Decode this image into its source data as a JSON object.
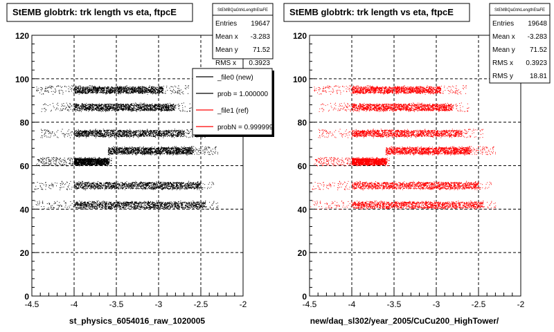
{
  "footer_text": "",
  "chart_data": [
    {
      "type": "scatter",
      "title": "StEMB globtrk: trk length vs eta, ftpcE",
      "xlabel": "st_physics_6054016_raw_1020005",
      "ylabel": "",
      "xlim": [
        -4.5,
        -2
      ],
      "ylim": [
        0,
        120
      ],
      "x_ticks": [
        "-4.5",
        "-4",
        "-3.5",
        "-3",
        "-2.5",
        "-2"
      ],
      "y_ticks": [
        "0",
        "20",
        "40",
        "60",
        "80",
        "100",
        "120"
      ],
      "grid": true,
      "marker_color": "#000000",
      "stats": {
        "name": "StEMBQaGtrkLengthEtaFE",
        "rows": [
          {
            "label": "Entries",
            "value": "19647"
          },
          {
            "label": "Mean x",
            "value": "-3.283"
          },
          {
            "label": "Mean y",
            "value": "71.52"
          },
          {
            "label": "RMS x",
            "value": "0.3923"
          }
        ]
      },
      "legend": {
        "placement": "top-right",
        "entries": [
          {
            "label": "_file0 (new)",
            "color": "#000000"
          },
          {
            "label": "prob = 1.000000",
            "color": "#000000"
          },
          {
            "label": "_file1 (ref)",
            "color": "#ff0000"
          },
          {
            "label": "probN = 0.999999",
            "color": "#ff0000"
          }
        ]
      },
      "bands": [
        {
          "y": [
            93,
            97
          ],
          "x": [
            -4.45,
            -2.65
          ],
          "dense": [
            -4.0,
            -2.95
          ]
        },
        {
          "y": [
            85,
            89
          ],
          "x": [
            -4.4,
            -2.6
          ],
          "dense": [
            -4.0,
            -2.8
          ]
        },
        {
          "y": [
            73,
            77
          ],
          "x": [
            -4.4,
            -2.45
          ],
          "dense": [
            -4.0,
            -2.7
          ]
        },
        {
          "y": [
            65,
            69
          ],
          "x": [
            -3.6,
            -2.3
          ],
          "dense": [
            -3.6,
            -2.6
          ]
        },
        {
          "y": [
            60,
            64
          ],
          "x": [
            -4.45,
            -3.55
          ],
          "dense": [
            -4.0,
            -3.6
          ]
        },
        {
          "y": [
            49,
            53
          ],
          "x": [
            -4.5,
            -2.35
          ],
          "dense": [
            -4.0,
            -2.5
          ]
        },
        {
          "y": [
            40,
            44
          ],
          "x": [
            -4.5,
            -2.3
          ],
          "dense": [
            -4.0,
            -2.45
          ]
        }
      ]
    },
    {
      "type": "scatter",
      "title": "StEMB globtrk: trk length vs eta, ftpcE",
      "xlabel": "new/daq_sl302/year_2005/CuCu200_HighTower/",
      "ylabel": "",
      "xlim": [
        -4.5,
        -2
      ],
      "ylim": [
        0,
        120
      ],
      "x_ticks": [
        "-4.5",
        "-4",
        "-3.5",
        "-3",
        "-2.5",
        "-2"
      ],
      "y_ticks": [
        "0",
        "20",
        "40",
        "60",
        "80",
        "100",
        "120"
      ],
      "grid": true,
      "marker_color": "#ff0000",
      "stats": {
        "name": "StEMBQaGtrkLengthEtaFE",
        "rows": [
          {
            "label": "Entries",
            "value": "19648"
          },
          {
            "label": "Mean x",
            "value": "-3.283"
          },
          {
            "label": "Mean y",
            "value": "71.52"
          },
          {
            "label": "RMS x",
            "value": "0.3923"
          },
          {
            "label": "RMS y",
            "value": "18.81"
          }
        ]
      },
      "bands": [
        {
          "y": [
            93,
            97
          ],
          "x": [
            -4.45,
            -2.65
          ],
          "dense": [
            -4.0,
            -2.95
          ]
        },
        {
          "y": [
            85,
            89
          ],
          "x": [
            -4.4,
            -2.6
          ],
          "dense": [
            -4.0,
            -2.8
          ]
        },
        {
          "y": [
            73,
            77
          ],
          "x": [
            -4.4,
            -2.45
          ],
          "dense": [
            -4.0,
            -2.7
          ]
        },
        {
          "y": [
            65,
            69
          ],
          "x": [
            -3.6,
            -2.3
          ],
          "dense": [
            -3.6,
            -2.6
          ]
        },
        {
          "y": [
            60,
            64
          ],
          "x": [
            -4.45,
            -3.55
          ],
          "dense": [
            -4.0,
            -3.6
          ]
        },
        {
          "y": [
            49,
            53
          ],
          "x": [
            -4.5,
            -2.35
          ],
          "dense": [
            -4.0,
            -2.5
          ]
        },
        {
          "y": [
            40,
            44
          ],
          "x": [
            -4.5,
            -2.3
          ],
          "dense": [
            -4.0,
            -2.45
          ]
        }
      ]
    }
  ]
}
